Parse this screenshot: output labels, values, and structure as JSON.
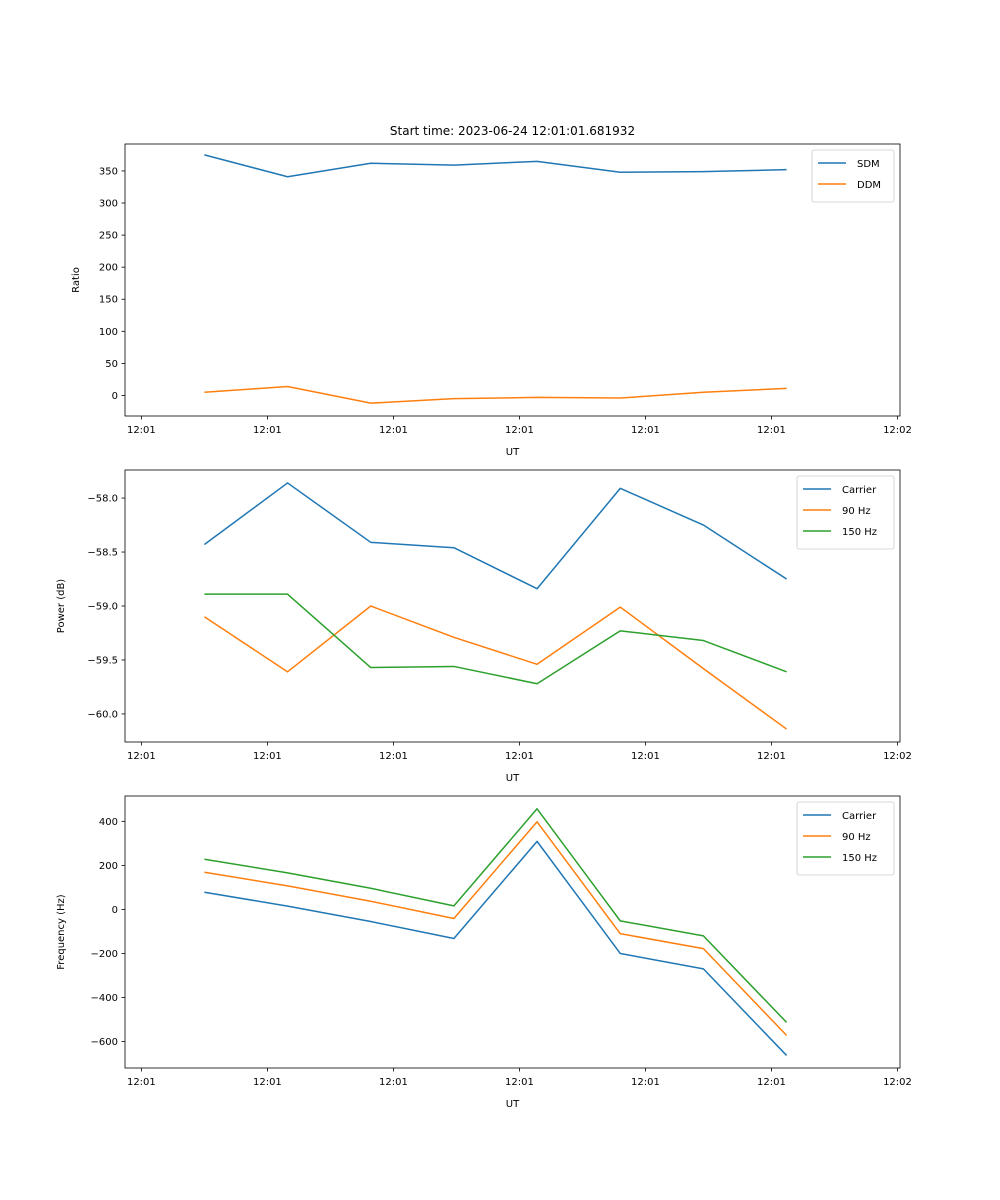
{
  "figure_title": "Start time: 2023-06-24 12:01:01.681932",
  "chart_data": [
    {
      "type": "line",
      "title": "Start time: 2023-06-24 12:01:01.681932",
      "xlabel": "UT",
      "ylabel": "Ratio",
      "x_tick_labels": [
        "12:01",
        "12:01",
        "12:01",
        "12:01",
        "12:01",
        "12:01",
        "12:02"
      ],
      "x_tick_values": [
        0,
        1,
        2,
        3,
        4,
        5,
        6
      ],
      "xlim": [
        -0.13,
        6.02
      ],
      "x": [
        0.5,
        1.16,
        1.82,
        2.48,
        3.14,
        3.8,
        4.46,
        5.12
      ],
      "ylim": [
        -32,
        392
      ],
      "yticks": [
        0,
        50,
        100,
        150,
        200,
        250,
        300,
        350
      ],
      "grid": false,
      "legend": "top-right",
      "series": [
        {
          "name": "SDM",
          "color": "#1f77b4",
          "values": [
            375,
            341,
            362,
            359,
            365,
            348,
            349,
            352
          ]
        },
        {
          "name": "DDM",
          "color": "#ff7f0e",
          "values": [
            5,
            14,
            -12,
            -5,
            -3,
            -4,
            5,
            11
          ]
        }
      ]
    },
    {
      "type": "line",
      "xlabel": "UT",
      "ylabel": "Power (dB)",
      "x_tick_labels": [
        "12:01",
        "12:01",
        "12:01",
        "12:01",
        "12:01",
        "12:01",
        "12:02"
      ],
      "x_tick_values": [
        0,
        1,
        2,
        3,
        4,
        5,
        6
      ],
      "xlim": [
        -0.13,
        6.02
      ],
      "x": [
        0.5,
        1.16,
        1.82,
        2.48,
        3.14,
        3.8,
        4.46,
        5.12
      ],
      "ylim": [
        -60.26,
        -57.74
      ],
      "yticks": [
        -60.0,
        -59.5,
        -59.0,
        -58.5,
        -58.0
      ],
      "ytick_labels": [
        "−60.0",
        "−59.5",
        "−59.0",
        "−58.5",
        "−58.0"
      ],
      "grid": false,
      "legend": "top-right",
      "series": [
        {
          "name": "Carrier",
          "color": "#1f77b4",
          "values": [
            -58.43,
            -57.86,
            -58.41,
            -58.46,
            -58.84,
            -57.91,
            -58.25,
            -58.75
          ]
        },
        {
          "name": "90 Hz",
          "color": "#ff7f0e",
          "values": [
            -59.1,
            -59.61,
            -59.0,
            -59.29,
            -59.54,
            -59.01,
            -59.58,
            -60.14
          ]
        },
        {
          "name": "150 Hz",
          "color": "#2ca02c",
          "values": [
            -58.89,
            -58.89,
            -59.57,
            -59.56,
            -59.72,
            -59.23,
            -59.32,
            -59.61
          ]
        }
      ]
    },
    {
      "type": "line",
      "xlabel": "UT",
      "ylabel": "Frequency (Hz)",
      "x_tick_labels": [
        "12:01",
        "12:01",
        "12:01",
        "12:01",
        "12:01",
        "12:01",
        "12:02"
      ],
      "x_tick_values": [
        0,
        1,
        2,
        3,
        4,
        5,
        6
      ],
      "xlim": [
        -0.13,
        6.02
      ],
      "x": [
        0.5,
        1.16,
        1.82,
        2.48,
        3.14,
        3.8,
        4.46,
        5.12
      ],
      "ylim": [
        -720,
        515
      ],
      "yticks": [
        -600,
        -400,
        -200,
        0,
        200,
        400
      ],
      "ytick_labels": [
        "−600",
        "−400",
        "−200",
        "0",
        "200",
        "400"
      ],
      "grid": false,
      "legend": "top-right",
      "series": [
        {
          "name": "Carrier",
          "color": "#1f77b4",
          "values": [
            78,
            15,
            -55,
            -132,
            309,
            -200,
            -270,
            -663
          ]
        },
        {
          "name": "90 Hz",
          "color": "#ff7f0e",
          "values": [
            169,
            107,
            37,
            -41,
            398,
            -110,
            -178,
            -572
          ]
        },
        {
          "name": "150 Hz",
          "color": "#2ca02c",
          "values": [
            228,
            166,
            96,
            16,
            457,
            -52,
            -120,
            -513
          ]
        }
      ]
    }
  ]
}
